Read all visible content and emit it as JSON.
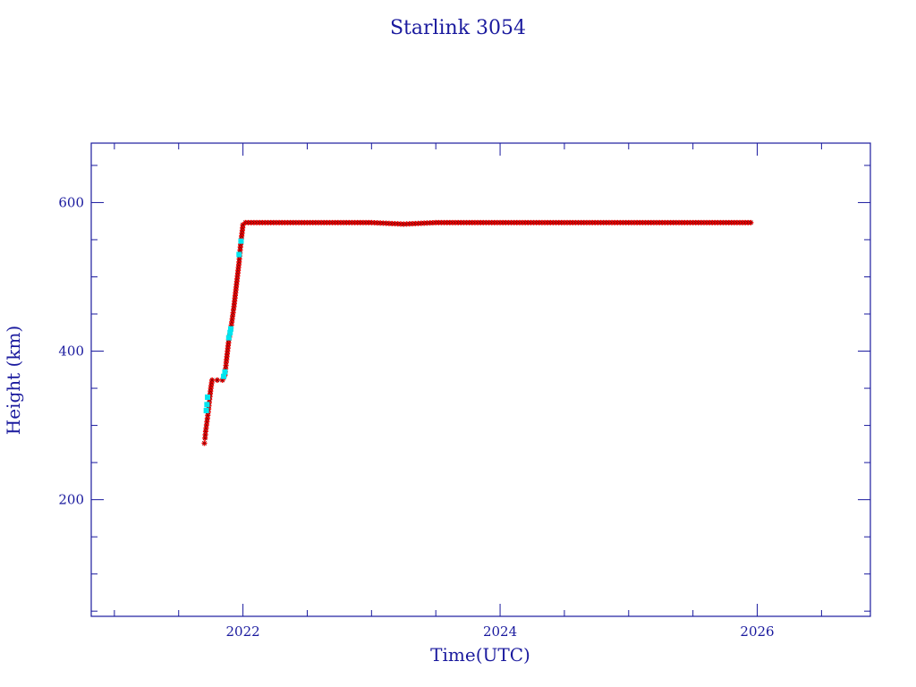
{
  "chart_data": {
    "type": "scatter",
    "title": "Starlink 3054",
    "xlabel": "Time(UTC)",
    "ylabel": "Height (km)",
    "xlim": [
      2020.82,
      2026.88
    ],
    "ylim": [
      43,
      680
    ],
    "x_ticks": [
      2022,
      2024,
      2026
    ],
    "y_ticks": [
      200,
      400,
      600
    ],
    "x_minor_step": 0.5,
    "y_minor_step": 50,
    "grid": false,
    "colors": {
      "axis": "#1a1a9e",
      "text": "#1a1a9e",
      "primary": "#ff0000",
      "secondary": "#00e5ee",
      "marker_edge": "#8b0000"
    },
    "series": [
      {
        "color": "#ff0000",
        "marker": "star",
        "points": [
          [
            2021.7,
            276
          ],
          [
            2021.705,
            283
          ],
          [
            2021.71,
            292
          ],
          [
            2021.72,
            305
          ],
          [
            2021.73,
            318
          ],
          [
            2021.74,
            335
          ],
          [
            2021.75,
            350
          ],
          [
            2021.76,
            361
          ],
          [
            2021.8,
            361
          ],
          [
            2021.84,
            361
          ],
          [
            2021.86,
            368
          ],
          [
            2021.87,
            385
          ],
          [
            2021.88,
            400
          ],
          [
            2021.89,
            415
          ],
          [
            2021.91,
            435
          ],
          [
            2021.93,
            460
          ],
          [
            2021.95,
            490
          ],
          [
            2021.97,
            520
          ],
          [
            2021.98,
            540
          ],
          [
            2021.99,
            555
          ],
          [
            2022.0,
            570
          ],
          [
            2022.02,
            573
          ],
          [
            2022.5,
            573
          ],
          [
            2023.0,
            573
          ],
          [
            2023.25,
            571
          ],
          [
            2023.5,
            573
          ],
          [
            2024.0,
            573
          ],
          [
            2024.5,
            573
          ],
          [
            2025.0,
            573
          ],
          [
            2025.5,
            573
          ],
          [
            2025.95,
            573
          ]
        ]
      },
      {
        "color": "#00e5ee",
        "marker": "square",
        "points": [
          [
            2021.715,
            320
          ],
          [
            2021.72,
            328
          ],
          [
            2021.725,
            338
          ],
          [
            2021.85,
            366
          ],
          [
            2021.86,
            372
          ],
          [
            2021.89,
            418
          ],
          [
            2021.9,
            425
          ],
          [
            2021.905,
            430
          ],
          [
            2021.97,
            530
          ],
          [
            2021.985,
            548
          ]
        ]
      }
    ]
  }
}
